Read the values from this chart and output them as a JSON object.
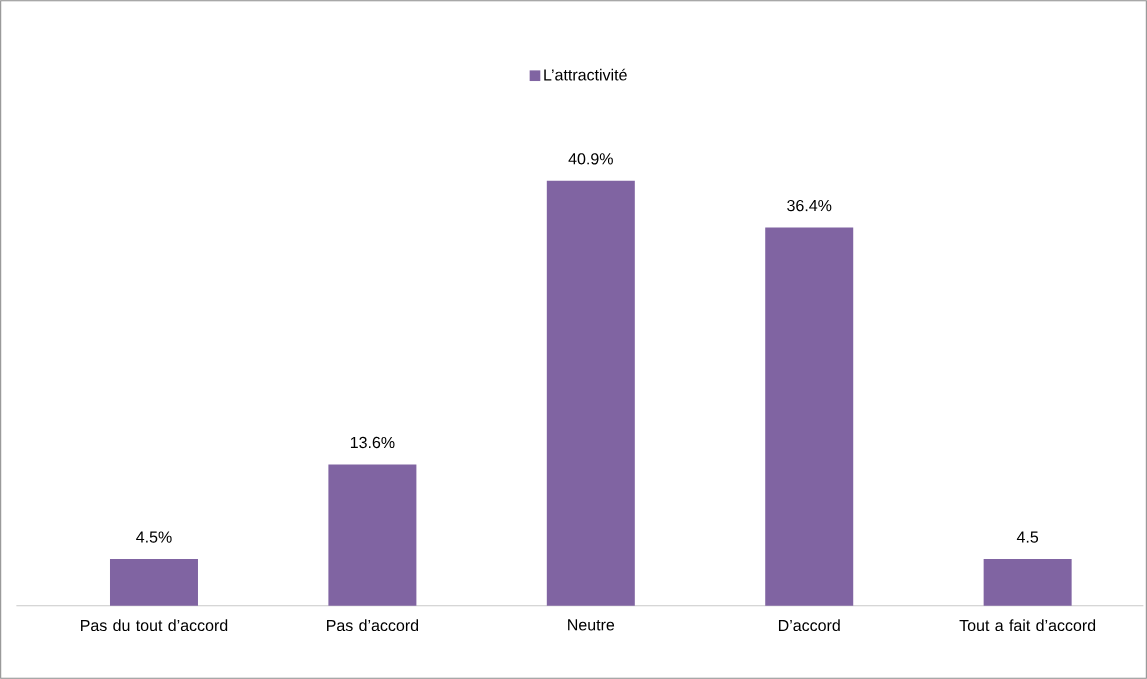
{
  "chart_data": {
    "type": "bar",
    "categories": [
      "Pas du tout d’accord",
      "Pas d’accord",
      "Neutre",
      "D’accord",
      "Tout a fait d’accord"
    ],
    "series": [
      {
        "name": "L’attractivité",
        "color": "#8064a2",
        "values": [
          4.5,
          13.6,
          40.9,
          36.4,
          4.5
        ],
        "value_labels": [
          "4.5%",
          "13.6%",
          "40.9%",
          "36.4%",
          "4.5"
        ]
      }
    ],
    "legend": "top"
  }
}
